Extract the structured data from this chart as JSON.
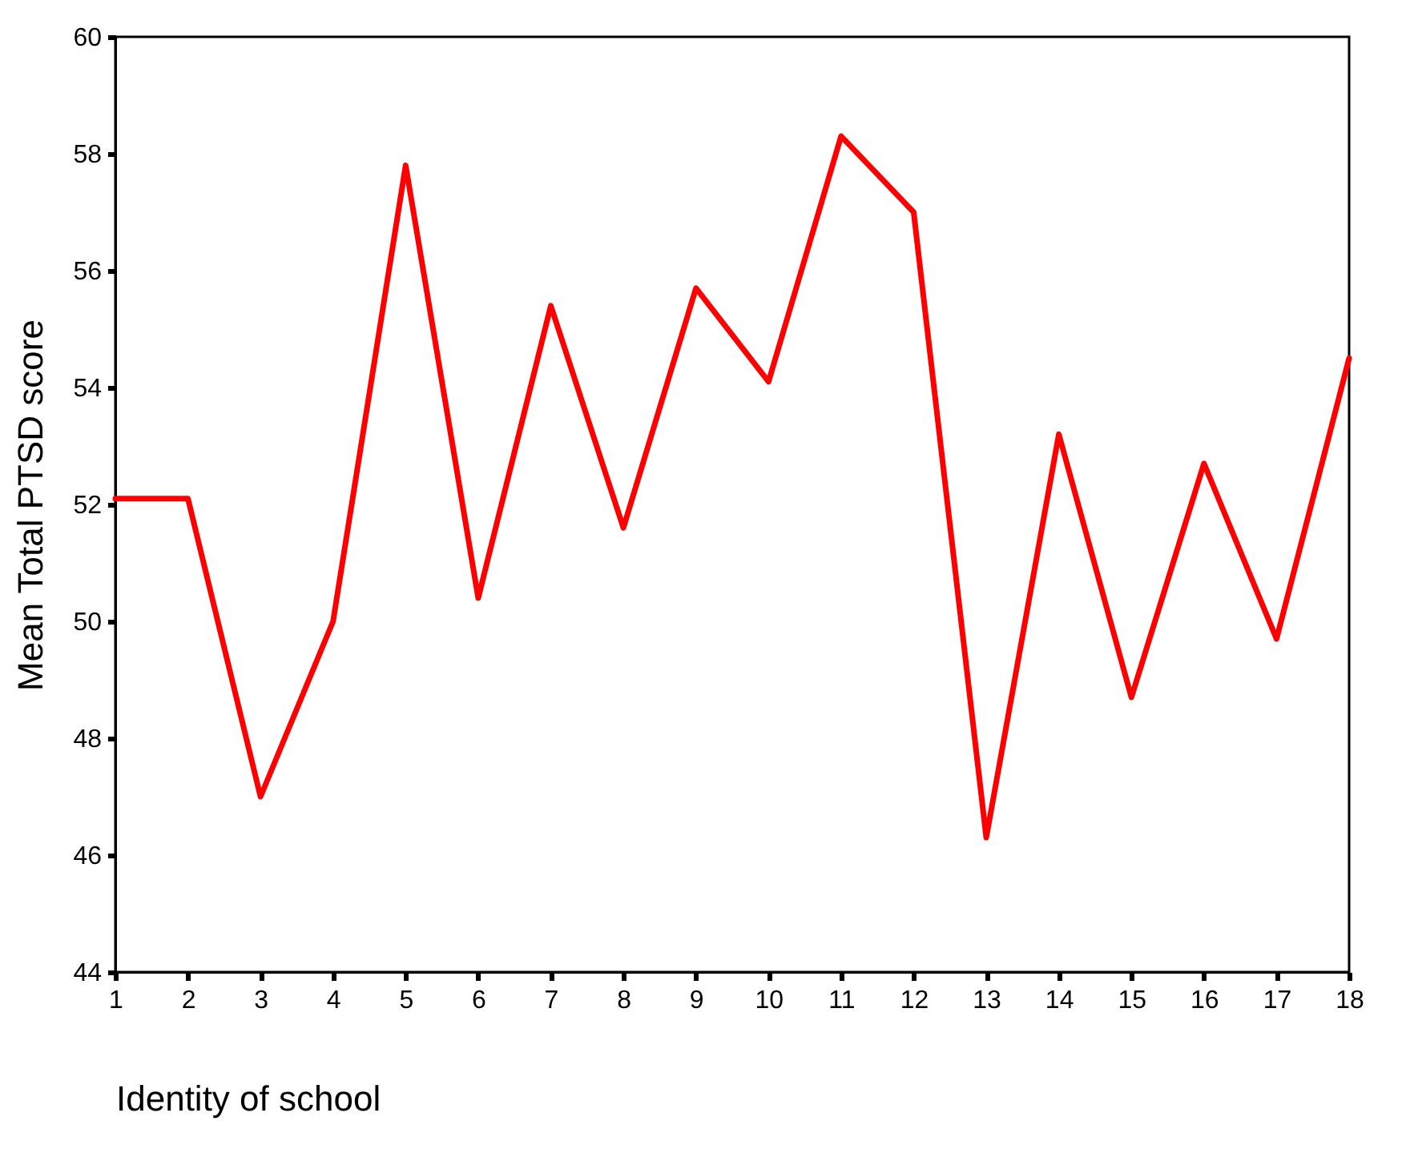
{
  "chart_data": {
    "type": "line",
    "xlabel": "Identity of school",
    "ylabel": "Mean Total PTSD score",
    "x": [
      1,
      2,
      3,
      4,
      5,
      6,
      7,
      8,
      9,
      10,
      11,
      12,
      13,
      14,
      15,
      16,
      17,
      18
    ],
    "series": [
      {
        "color": "#ff0000",
        "values": [
          52.1,
          52.1,
          47.0,
          50.0,
          57.8,
          50.4,
          55.4,
          51.6,
          55.7,
          54.1,
          58.3,
          57.0,
          46.3,
          53.2,
          48.7,
          52.7,
          49.7,
          54.5
        ]
      }
    ],
    "xlim": [
      1,
      18
    ],
    "xticks": [
      1,
      2,
      3,
      4,
      5,
      6,
      7,
      8,
      9,
      10,
      11,
      12,
      13,
      14,
      15,
      16,
      17,
      18
    ],
    "ylim": [
      44,
      60
    ],
    "yticks": [
      44,
      46,
      48,
      50,
      52,
      54,
      56,
      58,
      60
    ],
    "grid": false,
    "marker": "none",
    "line_style": "solid"
  }
}
